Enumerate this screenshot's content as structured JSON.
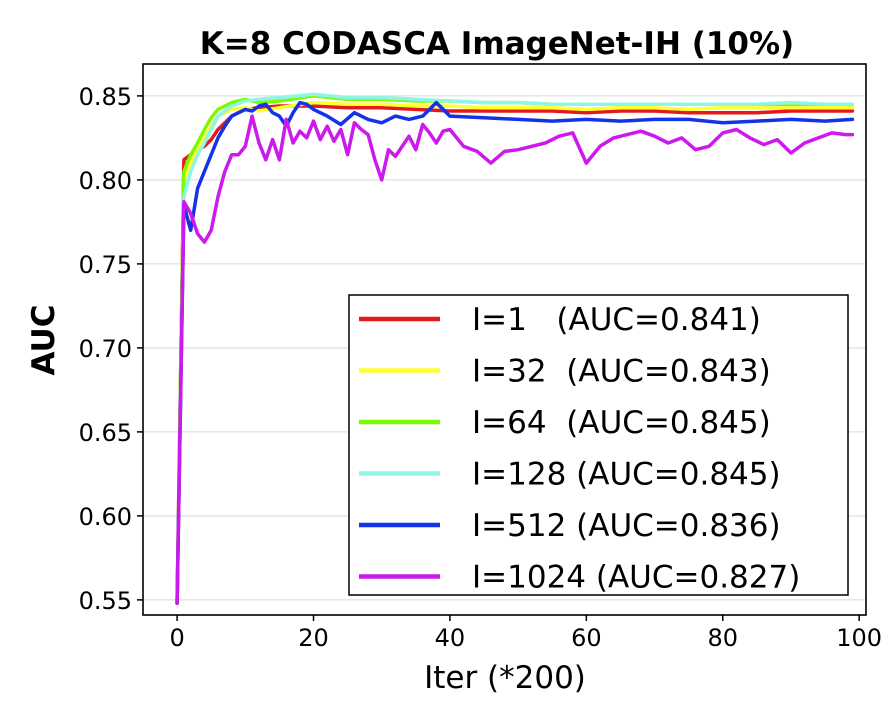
{
  "chart_data": {
    "type": "line",
    "title": "K=8 CODASCA ImageNet-IH (10%)",
    "xlabel": "Iter (*200)",
    "ylabel": "AUC",
    "xlim": [
      -5,
      101
    ],
    "ylim": [
      0.541,
      0.869
    ],
    "xticks": [
      0,
      20,
      40,
      60,
      80,
      100
    ],
    "yticks": [
      0.55,
      0.6,
      0.65,
      0.7,
      0.75,
      0.8,
      0.85
    ],
    "ytick_labels": [
      "0.55",
      "0.60",
      "0.65",
      "0.70",
      "0.75",
      "0.80",
      "0.85"
    ],
    "grid": "horizontal",
    "legend_position": "lower-right",
    "series": [
      {
        "name": "I=1   (AUC=0.841)",
        "color": "#e31a1c",
        "x": [
          0,
          1,
          2,
          3,
          4,
          5,
          6,
          8,
          10,
          12,
          15,
          20,
          25,
          30,
          35,
          40,
          45,
          50,
          55,
          60,
          65,
          70,
          75,
          80,
          85,
          90,
          95,
          99
        ],
        "y": [
          0.548,
          0.812,
          0.815,
          0.818,
          0.82,
          0.824,
          0.83,
          0.838,
          0.842,
          0.843,
          0.844,
          0.844,
          0.843,
          0.843,
          0.842,
          0.841,
          0.841,
          0.841,
          0.841,
          0.84,
          0.841,
          0.841,
          0.84,
          0.84,
          0.84,
          0.841,
          0.841,
          0.841
        ]
      },
      {
        "name": "I=32  (AUC=0.843)",
        "color": "#ffff33",
        "x": [
          0,
          1,
          2,
          3,
          4,
          5,
          6,
          8,
          10,
          12,
          15,
          20,
          25,
          30,
          35,
          40,
          45,
          50,
          55,
          60,
          65,
          70,
          75,
          80,
          85,
          90,
          95,
          99
        ],
        "y": [
          0.548,
          0.8,
          0.81,
          0.818,
          0.825,
          0.832,
          0.838,
          0.842,
          0.843,
          0.841,
          0.843,
          0.846,
          0.845,
          0.845,
          0.844,
          0.844,
          0.843,
          0.843,
          0.843,
          0.842,
          0.843,
          0.843,
          0.842,
          0.843,
          0.843,
          0.843,
          0.843,
          0.843
        ]
      },
      {
        "name": "I=64  (AUC=0.845)",
        "color": "#7cfc00",
        "x": [
          0,
          1,
          2,
          3,
          4,
          5,
          6,
          8,
          10,
          12,
          15,
          20,
          25,
          30,
          35,
          40,
          45,
          50,
          55,
          60,
          65,
          70,
          75,
          80,
          85,
          90,
          95,
          99
        ],
        "y": [
          0.548,
          0.805,
          0.815,
          0.822,
          0.83,
          0.837,
          0.842,
          0.846,
          0.848,
          0.846,
          0.847,
          0.85,
          0.848,
          0.848,
          0.847,
          0.847,
          0.846,
          0.846,
          0.845,
          0.845,
          0.845,
          0.845,
          0.845,
          0.845,
          0.845,
          0.845,
          0.845,
          0.845
        ]
      },
      {
        "name": "I=128 (AUC=0.845)",
        "color": "#8ff5e6",
        "x": [
          0,
          1,
          2,
          3,
          4,
          5,
          6,
          8,
          10,
          12,
          15,
          20,
          25,
          30,
          35,
          40,
          45,
          50,
          55,
          60,
          65,
          70,
          75,
          80,
          85,
          90,
          95,
          99
        ],
        "y": [
          0.548,
          0.79,
          0.805,
          0.815,
          0.822,
          0.83,
          0.838,
          0.844,
          0.847,
          0.848,
          0.849,
          0.851,
          0.849,
          0.849,
          0.848,
          0.847,
          0.846,
          0.846,
          0.845,
          0.845,
          0.845,
          0.845,
          0.845,
          0.845,
          0.845,
          0.846,
          0.845,
          0.845
        ]
      },
      {
        "name": "I=512 (AUC=0.836)",
        "color": "#1433e6",
        "x": [
          0,
          1,
          2,
          3,
          4,
          5,
          6,
          7,
          8,
          9,
          10,
          11,
          12,
          13,
          14,
          15,
          16,
          17,
          18,
          19,
          20,
          22,
          24,
          26,
          28,
          30,
          32,
          34,
          36,
          38,
          40,
          45,
          50,
          55,
          60,
          65,
          70,
          75,
          80,
          85,
          90,
          95,
          99
        ],
        "y": [
          0.548,
          0.785,
          0.77,
          0.795,
          0.805,
          0.815,
          0.825,
          0.832,
          0.838,
          0.84,
          0.842,
          0.841,
          0.844,
          0.845,
          0.84,
          0.838,
          0.832,
          0.84,
          0.846,
          0.845,
          0.842,
          0.838,
          0.833,
          0.84,
          0.836,
          0.834,
          0.838,
          0.836,
          0.838,
          0.846,
          0.838,
          0.837,
          0.836,
          0.835,
          0.836,
          0.835,
          0.836,
          0.836,
          0.834,
          0.835,
          0.836,
          0.835,
          0.836
        ]
      },
      {
        "name": "I=1024 (AUC=0.827)",
        "color": "#cc19ec",
        "x": [
          0,
          1,
          2,
          3,
          4,
          5,
          6,
          7,
          8,
          9,
          10,
          11,
          12,
          13,
          14,
          15,
          16,
          17,
          18,
          19,
          20,
          21,
          22,
          23,
          24,
          25,
          26,
          27,
          28,
          29,
          30,
          31,
          32,
          33,
          34,
          35,
          36,
          37,
          38,
          39,
          40,
          42,
          44,
          46,
          48,
          50,
          52,
          54,
          56,
          58,
          60,
          62,
          64,
          66,
          68,
          70,
          72,
          74,
          76,
          78,
          80,
          82,
          84,
          86,
          88,
          90,
          92,
          94,
          96,
          98,
          99
        ],
        "y": [
          0.548,
          0.787,
          0.78,
          0.768,
          0.763,
          0.77,
          0.79,
          0.805,
          0.815,
          0.815,
          0.82,
          0.838,
          0.822,
          0.812,
          0.824,
          0.812,
          0.836,
          0.822,
          0.829,
          0.825,
          0.835,
          0.824,
          0.832,
          0.823,
          0.83,
          0.815,
          0.834,
          0.83,
          0.827,
          0.812,
          0.8,
          0.818,
          0.814,
          0.82,
          0.826,
          0.818,
          0.833,
          0.828,
          0.822,
          0.829,
          0.83,
          0.82,
          0.817,
          0.81,
          0.817,
          0.818,
          0.82,
          0.822,
          0.826,
          0.828,
          0.81,
          0.82,
          0.825,
          0.827,
          0.829,
          0.826,
          0.822,
          0.825,
          0.818,
          0.82,
          0.828,
          0.83,
          0.825,
          0.821,
          0.824,
          0.816,
          0.822,
          0.825,
          0.828,
          0.827,
          0.827
        ]
      }
    ]
  }
}
